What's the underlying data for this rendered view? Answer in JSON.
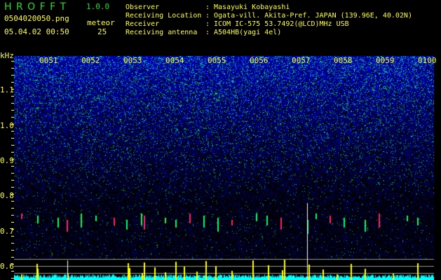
{
  "app": {
    "title": "H R O F F T",
    "version": "1.0.0"
  },
  "file": {
    "name": "0504020050.png",
    "datetime": "05.04.02 00:50"
  },
  "meteor": {
    "label": "meteor",
    "count": "25"
  },
  "info": [
    {
      "label": "Observer",
      "value": "Masayuki Kobayashi"
    },
    {
      "label": "Receiving Location",
      "value": "Ogata-vill. Akita-Pref. JAPAN (139.96E, 40.02N)"
    },
    {
      "label": "Receiver",
      "value": "ICOM IC-575 53.7492(@LCD)MHz USB"
    },
    {
      "label": "Receiving antenna",
      "value": "A504HB(yagi 4el)"
    }
  ],
  "axis": {
    "unit": "kHz",
    "y_ticks": [
      "1.1",
      "1.0",
      "0.9",
      "0.8",
      "0.7",
      "0.6"
    ],
    "x_ticks": [
      "0051",
      "0052",
      "0053",
      "0054",
      "0055",
      "0056",
      "0057",
      "0058",
      "0059",
      "0100"
    ]
  },
  "colors": {
    "text": "#ffff33",
    "title": "#22dd22",
    "meter": "#00ffff",
    "detection": "#ffff00"
  }
}
